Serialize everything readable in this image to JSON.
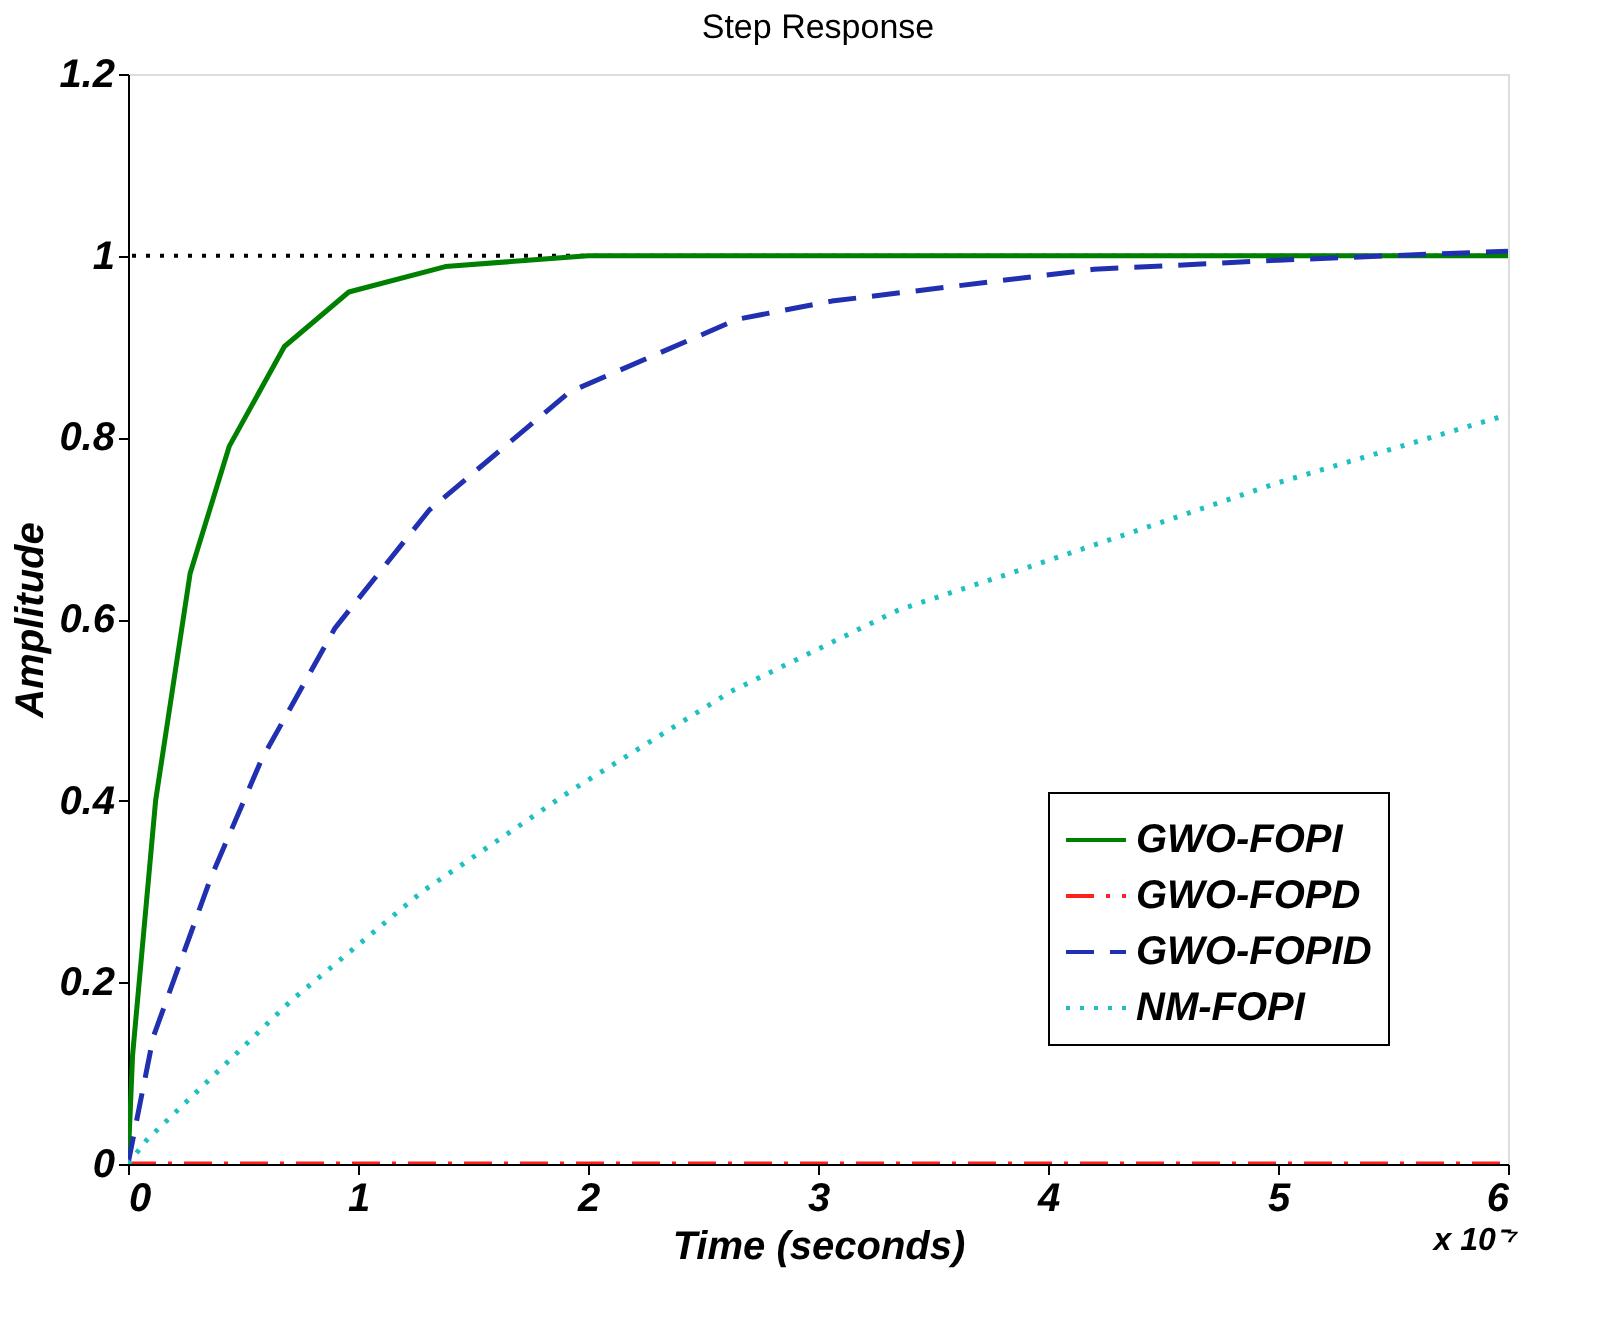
{
  "chart_data": {
    "type": "line",
    "title": "Step Response",
    "xlabel": "Time (seconds)",
    "ylabel": "Amplitude",
    "xlim": [
      0,
      6
    ],
    "xticks": [
      0,
      1,
      2,
      3,
      4,
      5,
      6
    ],
    "ylim": [
      0,
      1.2
    ],
    "yticks": [
      0,
      0.2,
      0.4,
      0.6,
      0.8,
      1,
      1.2
    ],
    "grid": false,
    "legend": "bottom right",
    "marker": "none",
    "annotations": [
      "x 10⁻⁷"
    ],
    "ref_lines": [
      {
        "axis": "y",
        "value": 1,
        "color": "#000000",
        "line_style": "dotted"
      }
    ],
    "series": [
      {
        "name": "GWO-FOPI",
        "color": "#008000",
        "line_style": "solid",
        "x": [
          0,
          0.02,
          0.12,
          0.27,
          0.44,
          0.68,
          0.96,
          1.38,
          2,
          3,
          4,
          5,
          6
        ],
        "values": [
          0,
          0.12,
          0.4,
          0.65,
          0.79,
          0.9,
          0.96,
          0.988,
          1,
          1,
          1,
          1,
          1
        ]
      },
      {
        "name": "GWO-FOPD",
        "color": "#ff2020",
        "line_style": "dashdot",
        "x": [
          0,
          6
        ],
        "values": [
          0,
          0
        ]
      },
      {
        "name": "GWO-FOPID",
        "color": "#2030b0",
        "line_style": "dashed",
        "x": [
          0,
          0.11,
          0.36,
          0.58,
          0.9,
          1.31,
          1.92,
          2.65,
          3.06,
          4.2,
          5,
          6
        ],
        "values": [
          0,
          0.14,
          0.315,
          0.445,
          0.59,
          0.72,
          0.85,
          0.93,
          0.95,
          0.985,
          0.995,
          1.005
        ]
      },
      {
        "name": "NM-FOPI",
        "color": "#20c0c0",
        "line_style": "dotted",
        "x": [
          0,
          0.08,
          0.71,
          1.28,
          1.92,
          2.62,
          3.35,
          3.88,
          5,
          6
        ],
        "values": [
          0,
          0.026,
          0.18,
          0.3,
          0.41,
          0.52,
          0.61,
          0.654,
          0.75,
          0.825
        ]
      }
    ]
  }
}
